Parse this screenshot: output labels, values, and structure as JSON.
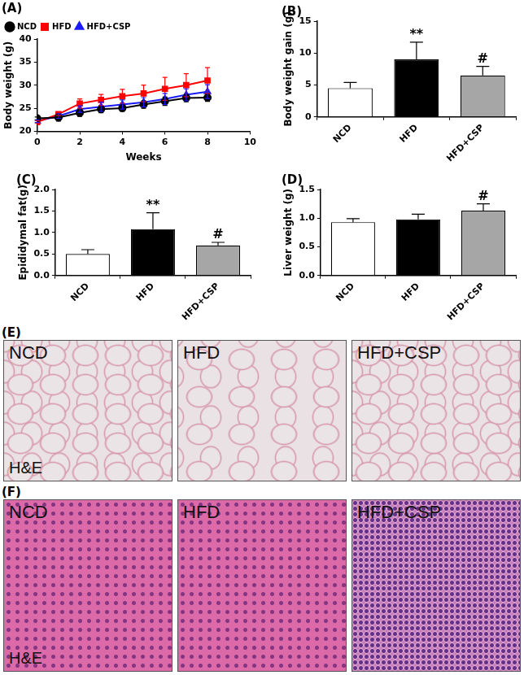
{
  "chart_data": [
    {
      "type": "line",
      "title": "(A)",
      "x_label": "Weeks",
      "y_label": "Body weight (g)",
      "x": [
        0,
        1,
        2,
        3,
        4,
        5,
        6,
        7,
        8
      ],
      "series": [
        {
          "name": "NCD",
          "color": "#000000",
          "marker": "circle",
          "values": [
            22.8,
            23.0,
            24.0,
            24.8,
            25.0,
            25.8,
            26.5,
            27.2,
            27.3
          ],
          "errors": [
            0.3,
            0.8,
            0.8,
            0.8,
            0.7,
            0.8,
            0.9,
            0.8,
            0.8
          ]
        },
        {
          "name": "HFD",
          "color": "#ff0000",
          "marker": "square",
          "values": [
            22.0,
            23.7,
            26.0,
            26.8,
            27.6,
            28.2,
            29.2,
            30.0,
            31.0
          ],
          "errors": [
            0.3,
            0.3,
            1.0,
            1.2,
            1.5,
            1.8,
            2.5,
            2.5,
            2.8
          ]
        },
        {
          "name": "HFD+CSP",
          "color": "#1a1aff",
          "marker": "triangle",
          "values": [
            22.2,
            23.3,
            24.8,
            25.3,
            25.8,
            26.3,
            27.0,
            27.9,
            28.6
          ],
          "errors": [
            0.3,
            0.5,
            0.7,
            1.0,
            1.0,
            1.0,
            1.2,
            1.3,
            1.5
          ]
        }
      ],
      "xlim": [
        0,
        10
      ],
      "xticks": [
        0,
        2,
        4,
        6,
        8,
        10
      ],
      "ylim": [
        20,
        40
      ],
      "yticks": [
        20,
        25,
        30,
        35,
        40
      ],
      "grid": false,
      "legend": "top-left"
    },
    {
      "type": "bar",
      "title": "(B)",
      "y_label": "Body weight gain (g)",
      "categories": [
        "NCD",
        "HFD",
        "HFD+CSP"
      ],
      "values": [
        4.5,
        9.0,
        6.5
      ],
      "errors": [
        0.9,
        2.7,
        1.4
      ],
      "colors": [
        "#ffffff",
        "#000000",
        "#a6a6a6"
      ],
      "ylim": [
        0,
        15
      ],
      "yticks": [
        0,
        5,
        10,
        15
      ],
      "grid": false,
      "annotations": [
        {
          "category": "HFD",
          "text": "**"
        },
        {
          "category": "HFD+CSP",
          "text": "#"
        }
      ]
    },
    {
      "type": "bar",
      "title": "(C)",
      "y_label": "Epididymal fat(g)",
      "categories": [
        "NCD",
        "HFD",
        "HFD+CSP"
      ],
      "values": [
        0.5,
        1.08,
        0.7
      ],
      "errors": [
        0.1,
        0.38,
        0.07
      ],
      "colors": [
        "#ffffff",
        "#000000",
        "#a6a6a6"
      ],
      "ylim": [
        0,
        2
      ],
      "yticks": [
        {
          "value": 0,
          "label": "0.0"
        },
        0.5,
        {
          "value": 1,
          "label": "1.0"
        },
        1.5,
        {
          "value": 2,
          "label": "2.0"
        }
      ],
      "grid": false,
      "annotations": [
        {
          "category": "HFD",
          "text": "**"
        },
        {
          "category": "HFD+CSP",
          "text": "#"
        }
      ]
    },
    {
      "type": "bar",
      "title": "(D)",
      "y_label": "Liver weight (g)",
      "categories": [
        "NCD",
        "HFD",
        "HFD+CSP"
      ],
      "values": [
        0.93,
        0.98,
        1.13
      ],
      "errors": [
        0.06,
        0.09,
        0.12
      ],
      "colors": [
        "#ffffff",
        "#000000",
        "#a6a6a6"
      ],
      "ylim": [
        0,
        1.5
      ],
      "yticks": [
        {
          "value": 0,
          "label": "0.0"
        },
        0.5,
        {
          "value": 1,
          "label": "1.0"
        },
        1.5
      ],
      "grid": false,
      "annotations": [
        {
          "category": "HFD+CSP",
          "text": "#"
        }
      ]
    }
  ],
  "image_panels": [
    {
      "title": "(E)",
      "stain": "H&E",
      "images": [
        "NCD",
        "HFD",
        "HFD+CSP"
      ]
    },
    {
      "title": "(F)",
      "stain": "H&E",
      "images": [
        "NCD",
        "HFD",
        "HFD+CSP"
      ]
    }
  ]
}
